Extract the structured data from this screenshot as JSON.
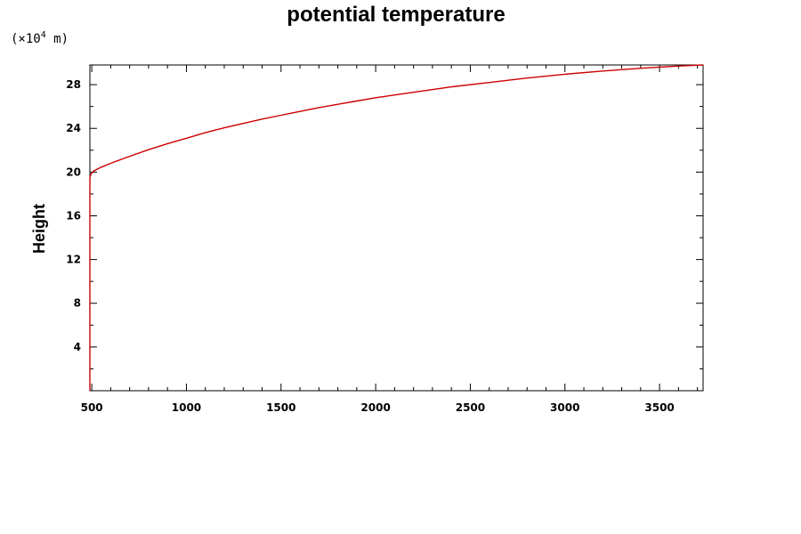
{
  "chart_data": {
    "type": "line",
    "title": "potential temperature",
    "xlabel": "",
    "ylabel": "Height",
    "y_unit_prefix": "(×10",
    "y_unit_exponent": "4",
    "y_unit_suffix": " m)",
    "xlim": [
      490,
      3730
    ],
    "ylim": [
      0,
      29.8
    ],
    "x_ticks": [
      500,
      1000,
      1500,
      2000,
      2500,
      3000,
      3500
    ],
    "y_ticks": [
      4,
      8,
      12,
      16,
      20,
      24,
      28
    ],
    "x_minor_step": 100,
    "y_minor_step": 2,
    "grid": false,
    "series": [
      {
        "color": "#cc0000",
        "x": [
          490,
          490,
          490,
          495,
          510,
          550,
          600,
          700,
          800,
          900,
          1000,
          1100,
          1200,
          1300,
          1400,
          1500,
          1600,
          1700,
          1800,
          1900,
          2000,
          2200,
          2400,
          2600,
          2800,
          3000,
          3200,
          3400,
          3600,
          3730
        ],
        "y": [
          0,
          10,
          19.5,
          19.8,
          20.1,
          20.45,
          20.8,
          21.45,
          22.05,
          22.6,
          23.1,
          23.6,
          24.05,
          24.45,
          24.85,
          25.2,
          25.55,
          25.9,
          26.2,
          26.5,
          26.8,
          27.3,
          27.8,
          28.2,
          28.6,
          28.95,
          29.25,
          29.5,
          29.7,
          29.8
        ]
      }
    ]
  }
}
